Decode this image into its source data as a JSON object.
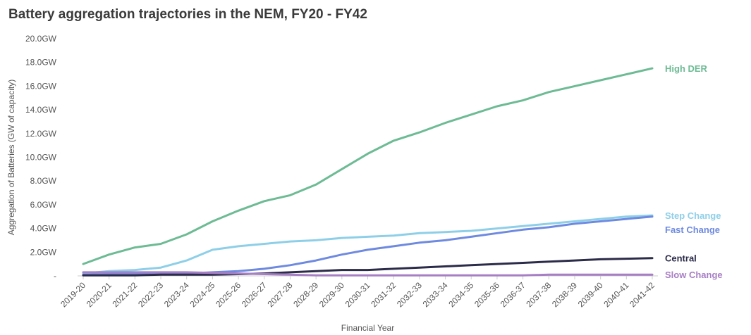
{
  "chart_data": {
    "type": "line",
    "title": "Battery aggregation trajectories in the NEM, FY20 - FY42",
    "xlabel": "Financial Year",
    "ylabel": "Aggregation of Batteries (GW of capacity)",
    "ylim": [
      0,
      20
    ],
    "y_ticks": [
      "-",
      "2.0GW",
      "4.0GW",
      "6.0GW",
      "8.0GW",
      "10.0GW",
      "12.0GW",
      "14.0GW",
      "16.0GW",
      "18.0GW",
      "20.0GW"
    ],
    "categories": [
      "2019-20",
      "2020-21",
      "2021-22",
      "2022-23",
      "2023-24",
      "2024-25",
      "2025-26",
      "2026-27",
      "2027-28",
      "2028-29",
      "2029-30",
      "2030-31",
      "2031-32",
      "2032-33",
      "2033-34",
      "2034-35",
      "2035-36",
      "2036-37",
      "2037-38",
      "2038-39",
      "2039-40",
      "2040-41",
      "2041-42"
    ],
    "grid": false,
    "legend": "inline labels at right end of lines",
    "series": [
      {
        "name": "High DER",
        "color": "#6dbb94",
        "values": [
          1.0,
          1.8,
          2.4,
          2.7,
          3.5,
          4.6,
          5.5,
          6.3,
          6.8,
          7.7,
          9.0,
          10.3,
          11.4,
          12.1,
          12.9,
          13.6,
          14.3,
          14.8,
          15.5,
          16.0,
          16.5,
          17.0,
          17.5
        ]
      },
      {
        "name": "Step Change",
        "color": "#8ecfe8",
        "values": [
          0.2,
          0.4,
          0.5,
          0.7,
          1.3,
          2.2,
          2.5,
          2.7,
          2.9,
          3.0,
          3.2,
          3.3,
          3.4,
          3.6,
          3.7,
          3.8,
          4.0,
          4.2,
          4.4,
          4.6,
          4.8,
          5.0,
          5.1
        ]
      },
      {
        "name": "Fast Change",
        "color": "#6e8ae0",
        "values": [
          0.1,
          0.15,
          0.2,
          0.2,
          0.2,
          0.3,
          0.4,
          0.6,
          0.9,
          1.3,
          1.8,
          2.2,
          2.5,
          2.8,
          3.0,
          3.3,
          3.6,
          3.9,
          4.1,
          4.4,
          4.6,
          4.8,
          5.0
        ]
      },
      {
        "name": "Central",
        "color": "#2b2b4a",
        "values": [
          0.05,
          0.05,
          0.05,
          0.1,
          0.1,
          0.1,
          0.15,
          0.2,
          0.3,
          0.4,
          0.5,
          0.5,
          0.6,
          0.7,
          0.8,
          0.9,
          1.0,
          1.1,
          1.2,
          1.3,
          1.4,
          1.45,
          1.5
        ]
      },
      {
        "name": "Slow Change",
        "color": "#a77fc4",
        "values": [
          0.3,
          0.3,
          0.3,
          0.3,
          0.3,
          0.25,
          0.2,
          0.15,
          0.1,
          0.05,
          0.05,
          0.05,
          0.05,
          0.05,
          0.05,
          0.05,
          0.05,
          0.05,
          0.1,
          0.1,
          0.1,
          0.1,
          0.1
        ]
      }
    ]
  }
}
